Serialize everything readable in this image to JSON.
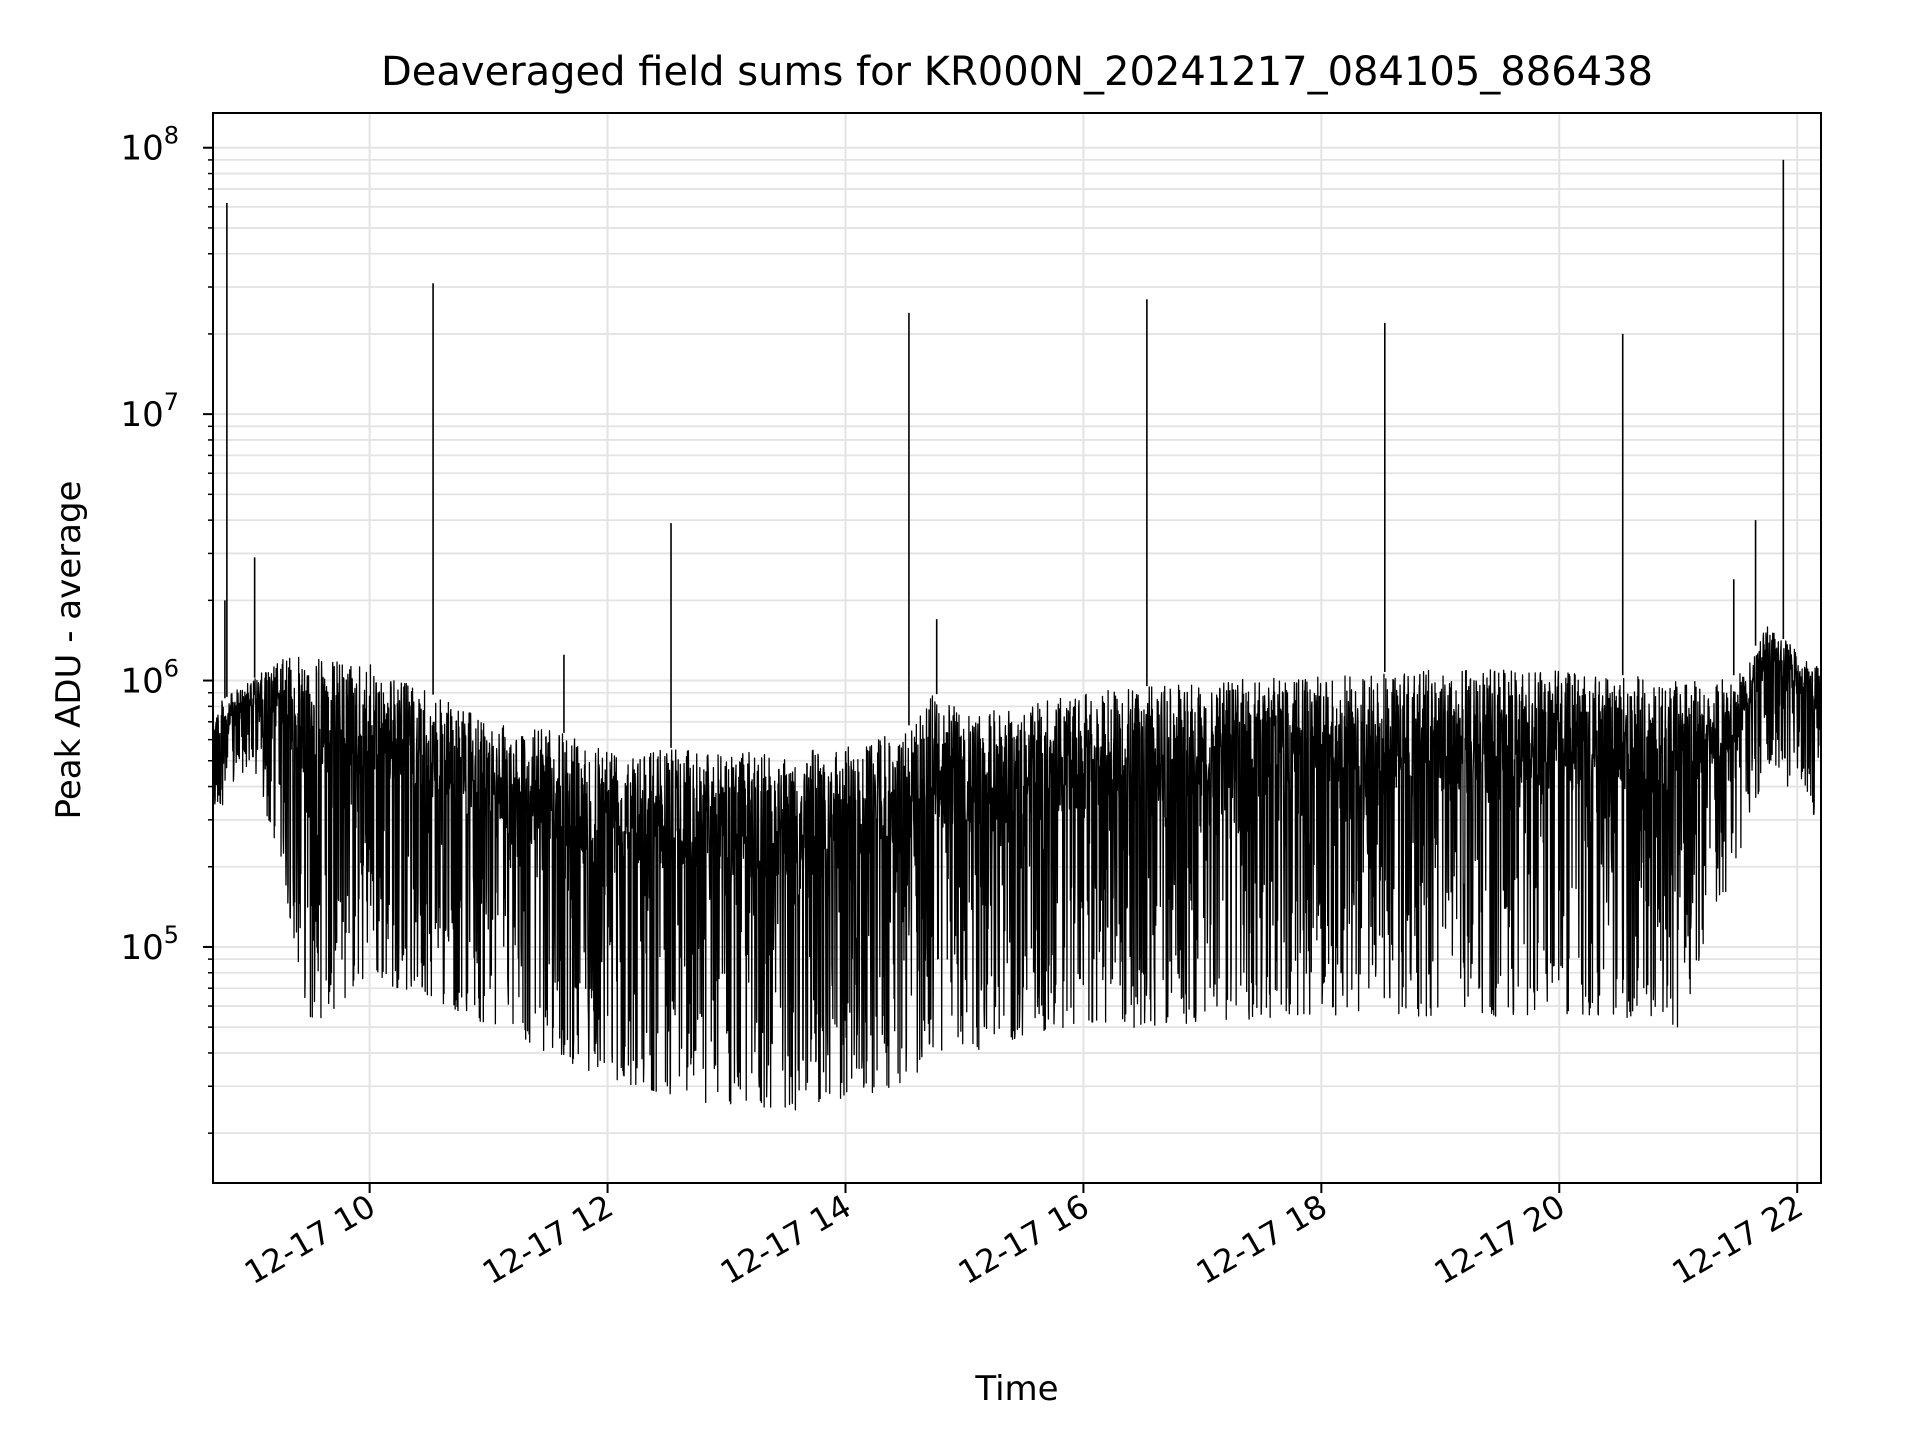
{
  "chart_data": {
    "type": "line",
    "title": "Deaveraged field sums for KR000N_20241217_084105_886438",
    "xlabel": "Time",
    "ylabel": "Peak ADU - average",
    "yscale": "log",
    "grid": true,
    "xlim": [
      "2024-12-17 08:41",
      "2024-12-17 22:12"
    ],
    "ylim": [
      13000,
      135000000
    ],
    "x_ticks": [
      {
        "value": "2024-12-17 10:00",
        "label": "12-17 10"
      },
      {
        "value": "2024-12-17 12:00",
        "label": "12-17 12"
      },
      {
        "value": "2024-12-17 14:00",
        "label": "12-17 14"
      },
      {
        "value": "2024-12-17 16:00",
        "label": "12-17 16"
      },
      {
        "value": "2024-12-17 18:00",
        "label": "12-17 18"
      },
      {
        "value": "2024-12-17 20:00",
        "label": "12-17 20"
      },
      {
        "value": "2024-12-17 22:00",
        "label": "12-17 22"
      }
    ],
    "y_ticks": [
      {
        "value": 100000,
        "base": "10",
        "exp": "5"
      },
      {
        "value": 1000000,
        "base": "10",
        "exp": "6"
      },
      {
        "value": 10000000,
        "base": "10",
        "exp": "7"
      },
      {
        "value": 100000000,
        "base": "10",
        "exp": "8"
      }
    ],
    "envelope": {
      "x": [
        "2024-12-17 08:41",
        "2024-12-17 09:00",
        "2024-12-17 09:15",
        "2024-12-17 09:30",
        "2024-12-17 10:00",
        "2024-12-17 10:30",
        "2024-12-17 11:00",
        "2024-12-17 11:30",
        "2024-12-17 12:00",
        "2024-12-17 12:30",
        "2024-12-17 13:00",
        "2024-12-17 13:30",
        "2024-12-17 14:00",
        "2024-12-17 14:30",
        "2024-12-17 14:45",
        "2024-12-17 15:00",
        "2024-12-17 15:30",
        "2024-12-17 16:00",
        "2024-12-17 16:30",
        "2024-12-17 17:00",
        "2024-12-17 18:00",
        "2024-12-17 19:00",
        "2024-12-17 20:00",
        "2024-12-17 20:30",
        "2024-12-17 21:00",
        "2024-12-17 21:30",
        "2024-12-17 21:45",
        "2024-12-17 22:00",
        "2024-12-17 22:12"
      ],
      "upper": [
        800000,
        1000000,
        1200000,
        1250000,
        1150000,
        900000,
        700000,
        650000,
        600000,
        560000,
        540000,
        540000,
        560000,
        650000,
        900000,
        750000,
        800000,
        900000,
        950000,
        1000000,
        1050000,
        1100000,
        1100000,
        1050000,
        1000000,
        1050000,
        1600000,
        1300000,
        1100000
      ],
      "lower": [
        300000,
        500000,
        200000,
        50000,
        75000,
        65000,
        50000,
        40000,
        32000,
        28000,
        25000,
        24000,
        27000,
        30000,
        40000,
        40000,
        45000,
        48000,
        50000,
        52000,
        55000,
        55000,
        55000,
        55000,
        50000,
        200000,
        500000,
        350000,
        300000
      ]
    },
    "spikes": [
      {
        "x": "2024-12-17 08:48",
        "y": 62000000
      },
      {
        "x": "2024-12-17 08:47",
        "y": 2000000
      },
      {
        "x": "2024-12-17 09:02",
        "y": 2900000
      },
      {
        "x": "2024-12-17 10:32",
        "y": 31000000
      },
      {
        "x": "2024-12-17 11:38",
        "y": 1250000
      },
      {
        "x": "2024-12-17 12:32",
        "y": 3900000
      },
      {
        "x": "2024-12-17 14:32",
        "y": 24000000
      },
      {
        "x": "2024-12-17 14:46",
        "y": 1700000
      },
      {
        "x": "2024-12-17 16:32",
        "y": 27000000
      },
      {
        "x": "2024-12-17 18:32",
        "y": 22000000
      },
      {
        "x": "2024-12-17 20:32",
        "y": 20000000
      },
      {
        "x": "2024-12-17 21:28",
        "y": 2400000
      },
      {
        "x": "2024-12-17 21:39",
        "y": 4000000
      },
      {
        "x": "2024-12-17 21:53",
        "y": 90000000
      }
    ]
  }
}
